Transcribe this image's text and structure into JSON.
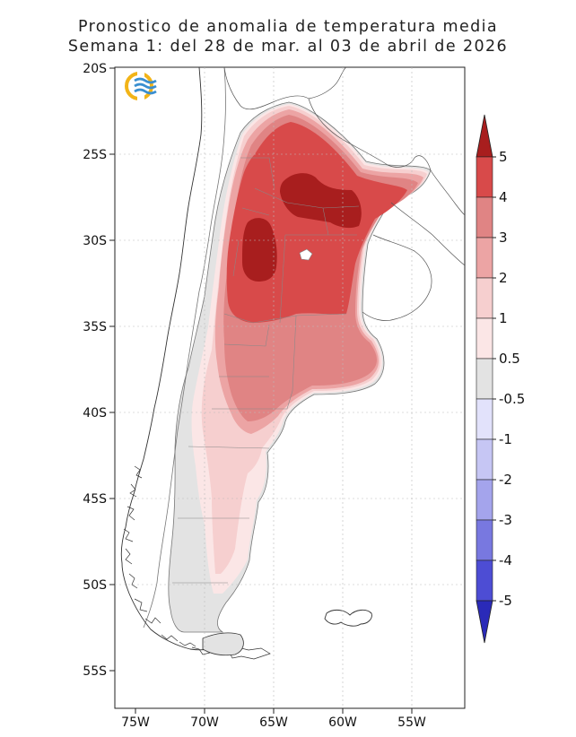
{
  "title": {
    "line1": "Pronostico de anomalia de temperatura media",
    "line2": "Semana 1: del 28 de mar. al 03 de abril de 2026"
  },
  "axes": {
    "lat_labels": [
      "20S",
      "25S",
      "30S",
      "35S",
      "40S",
      "45S",
      "50S",
      "55S"
    ],
    "lon_labels": [
      "75W",
      "70W",
      "65W",
      "60W",
      "55W"
    ]
  },
  "logo": {
    "icon": "weather-service-logo-icon",
    "colors": [
      "#f2b418",
      "#3a8fd0"
    ]
  },
  "colorbar": {
    "labels": [
      "5",
      "4",
      "3",
      "2",
      "1",
      "0.5",
      "-0.5",
      "-1",
      "-2",
      "-3",
      "-4",
      "-5"
    ],
    "bins": [
      {
        "range": "above 5",
        "color": "#a81e1e"
      },
      {
        "range": "4 to 5",
        "color": "#d84a4a"
      },
      {
        "range": "3 to 4",
        "color": "#e08484"
      },
      {
        "range": "2 to 3",
        "color": "#eca4a4"
      },
      {
        "range": "1 to 2",
        "color": "#f6cfcf"
      },
      {
        "range": "0.5 to 1",
        "color": "#fbe6e6"
      },
      {
        "range": "-0.5 to 0.5",
        "color": "#e3e3e3"
      },
      {
        "range": "-1 to -0.5",
        "color": "#e2e2fb"
      },
      {
        "range": "-2 to -1",
        "color": "#c6c6f4"
      },
      {
        "range": "-3 to -2",
        "color": "#a4a4ec"
      },
      {
        "range": "-4 to -3",
        "color": "#7878e0"
      },
      {
        "range": "-5 to -4",
        "color": "#4d4dd4"
      },
      {
        "range": "below -5",
        "color": "#2a2ab8"
      }
    ]
  }
}
